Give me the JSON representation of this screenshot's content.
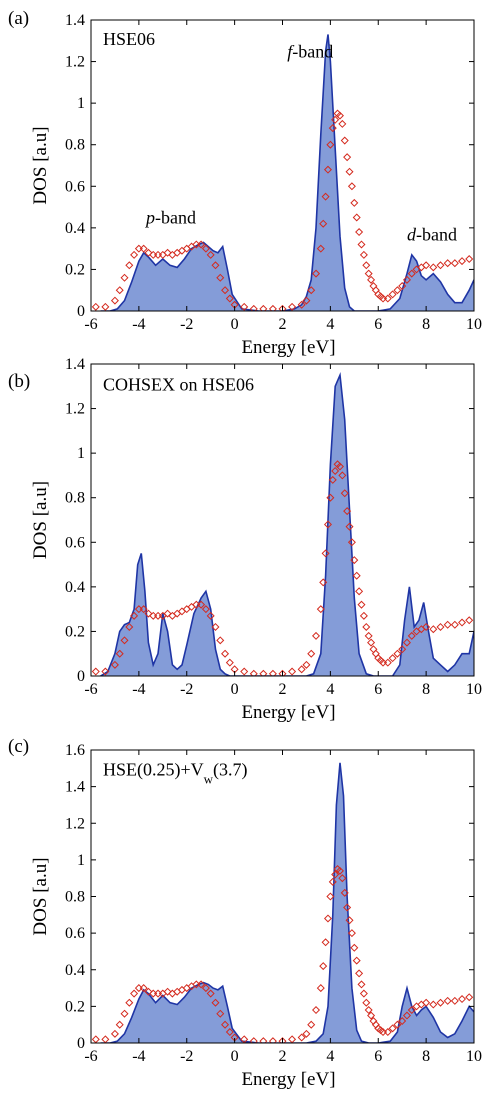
{
  "colors": {
    "dos_fill": "#6f8bd1",
    "dos_line": "#1f35a5",
    "exp_marker": "#d42a1e"
  },
  "chart_data": [
    {
      "type": "area",
      "panel_label": "(a)",
      "xlabel": "Energy [eV]",
      "ylabel": "DOS [a.u]",
      "xlim": [
        -6,
        10
      ],
      "ylim": [
        0,
        1.4
      ],
      "xticks": [
        "-6",
        "-4",
        "-2",
        "0",
        "2",
        "4",
        "6",
        "8",
        "10"
      ],
      "yticks": [
        "0",
        "0.2",
        "0.4",
        "0.6",
        "0.8",
        "1",
        "1.2",
        "1.4"
      ],
      "grid": false,
      "annotations": [
        {
          "text": "HSE06",
          "x": -5.5,
          "y": 1.28
        },
        {
          "text": "f-band",
          "x": 2.2,
          "y": 1.22
        },
        {
          "text": "p-band",
          "x": -3.7,
          "y": 0.42
        },
        {
          "text": "d-band",
          "x": 7.2,
          "y": 0.34
        }
      ],
      "series": [
        {
          "kind": "filled-line",
          "x": [
            -5.6,
            -5.2,
            -4.9,
            -4.6,
            -4.3,
            -4.0,
            -3.8,
            -3.6,
            -3.3,
            -3.0,
            -2.7,
            -2.4,
            -2.1,
            -1.8,
            -1.5,
            -1.3,
            -1.1,
            -0.9,
            -0.7,
            -0.5,
            -0.3,
            -0.1,
            0.3,
            1.0,
            2.0,
            2.5,
            2.8,
            3.0,
            3.2,
            3.4,
            3.6,
            3.8,
            3.9,
            4.0,
            4.2,
            4.4,
            4.6,
            4.8,
            5.0,
            5.3,
            5.6,
            6.0,
            6.5,
            6.9,
            7.2,
            7.4,
            7.6,
            7.8,
            8.0,
            8.3,
            8.6,
            8.9,
            9.2,
            9.5,
            9.8,
            10.0
          ],
          "y": [
            0,
            0,
            0.01,
            0.05,
            0.14,
            0.24,
            0.28,
            0.26,
            0.22,
            0.25,
            0.22,
            0.21,
            0.25,
            0.3,
            0.32,
            0.33,
            0.31,
            0.29,
            0.28,
            0.31,
            0.2,
            0.08,
            0.01,
            0,
            0,
            0.01,
            0.03,
            0.07,
            0.15,
            0.4,
            0.85,
            1.25,
            1.33,
            1.2,
            0.78,
            0.36,
            0.11,
            0.02,
            0,
            0,
            0,
            0,
            0.01,
            0.06,
            0.18,
            0.27,
            0.24,
            0.17,
            0.15,
            0.18,
            0.14,
            0.08,
            0.04,
            0.04,
            0.1,
            0.15
          ]
        },
        {
          "kind": "markers",
          "x": [
            -5.8,
            -5.4,
            -5.0,
            -4.8,
            -4.6,
            -4.4,
            -4.2,
            -4.0,
            -3.8,
            -3.6,
            -3.4,
            -3.2,
            -3.0,
            -2.8,
            -2.6,
            -2.4,
            -2.2,
            -2.0,
            -1.8,
            -1.6,
            -1.4,
            -1.2,
            -1.0,
            -0.8,
            -0.6,
            -0.4,
            -0.2,
            0.0,
            0.4,
            0.8,
            1.2,
            1.6,
            2.0,
            2.4,
            2.8,
            3.0,
            3.2,
            3.4,
            3.6,
            3.7,
            3.8,
            3.9,
            4.0,
            4.1,
            4.2,
            4.3,
            4.4,
            4.5,
            4.6,
            4.7,
            4.8,
            4.9,
            5.0,
            5.1,
            5.2,
            5.3,
            5.4,
            5.5,
            5.6,
            5.7,
            5.8,
            5.9,
            6.0,
            6.1,
            6.2,
            6.4,
            6.6,
            6.8,
            7.0,
            7.2,
            7.4,
            7.6,
            7.8,
            8.0,
            8.3,
            8.6,
            8.9,
            9.2,
            9.5,
            9.8
          ],
          "y": [
            0.02,
            0.02,
            0.05,
            0.1,
            0.16,
            0.22,
            0.27,
            0.3,
            0.3,
            0.28,
            0.27,
            0.27,
            0.27,
            0.28,
            0.27,
            0.28,
            0.29,
            0.3,
            0.31,
            0.32,
            0.32,
            0.3,
            0.27,
            0.22,
            0.16,
            0.1,
            0.06,
            0.03,
            0.02,
            0.01,
            0.01,
            0.01,
            0.01,
            0.02,
            0.03,
            0.05,
            0.1,
            0.18,
            0.3,
            0.42,
            0.55,
            0.68,
            0.8,
            0.88,
            0.92,
            0.95,
            0.94,
            0.9,
            0.82,
            0.74,
            0.67,
            0.6,
            0.52,
            0.45,
            0.38,
            0.32,
            0.27,
            0.22,
            0.18,
            0.15,
            0.12,
            0.1,
            0.08,
            0.07,
            0.06,
            0.06,
            0.08,
            0.1,
            0.12,
            0.15,
            0.18,
            0.2,
            0.21,
            0.22,
            0.21,
            0.22,
            0.23,
            0.23,
            0.24,
            0.25
          ]
        }
      ]
    },
    {
      "type": "area",
      "panel_label": "(b)",
      "xlabel": "Energy [eV]",
      "ylabel": "DOS [a.u]",
      "xlim": [
        -6,
        10
      ],
      "ylim": [
        0,
        1.4
      ],
      "xticks": [
        "-6",
        "-4",
        "-2",
        "0",
        "2",
        "4",
        "6",
        "8",
        "10"
      ],
      "yticks": [
        "0",
        "0.2",
        "0.4",
        "0.6",
        "0.8",
        "1",
        "1.2",
        "1.4"
      ],
      "grid": false,
      "annotations": [
        {
          "text": "COHSEX on HSE06",
          "x": -5.5,
          "y": 1.28
        }
      ],
      "series": [
        {
          "kind": "filled-line",
          "x": [
            -5.6,
            -5.3,
            -5.0,
            -4.8,
            -4.6,
            -4.4,
            -4.2,
            -4.05,
            -3.9,
            -3.75,
            -3.6,
            -3.4,
            -3.2,
            -3.0,
            -2.8,
            -2.6,
            -2.4,
            -2.2,
            -2.0,
            -1.7,
            -1.4,
            -1.2,
            -1.0,
            -0.8,
            -0.6,
            -0.4,
            -0.2,
            0.0,
            0.5,
            1.0,
            2.0,
            3.0,
            3.3,
            3.6,
            3.8,
            4.0,
            4.2,
            4.4,
            4.6,
            4.8,
            5.0,
            5.2,
            5.5,
            5.8,
            6.2,
            6.6,
            6.9,
            7.1,
            7.3,
            7.5,
            7.7,
            7.9,
            8.1,
            8.3,
            8.6,
            8.9,
            9.2,
            9.5,
            9.8,
            10.0
          ],
          "y": [
            0,
            0.02,
            0.1,
            0.2,
            0.23,
            0.24,
            0.3,
            0.5,
            0.55,
            0.38,
            0.15,
            0.05,
            0.1,
            0.28,
            0.2,
            0.05,
            0.03,
            0.05,
            0.14,
            0.28,
            0.35,
            0.38,
            0.3,
            0.12,
            0.03,
            0.01,
            0,
            0,
            0,
            0,
            0,
            0,
            0.01,
            0.1,
            0.45,
            0.95,
            1.3,
            1.35,
            1.15,
            0.75,
            0.35,
            0.1,
            0.01,
            0,
            0,
            0,
            0.05,
            0.25,
            0.4,
            0.22,
            0.25,
            0.33,
            0.2,
            0.08,
            0.05,
            0.02,
            0.05,
            0.1,
            0.1,
            0.2
          ]
        },
        {
          "kind": "markers",
          "x": [
            -5.8,
            -5.4,
            -5.0,
            -4.8,
            -4.6,
            -4.4,
            -4.2,
            -4.0,
            -3.8,
            -3.6,
            -3.4,
            -3.2,
            -3.0,
            -2.8,
            -2.6,
            -2.4,
            -2.2,
            -2.0,
            -1.8,
            -1.6,
            -1.4,
            -1.2,
            -1.0,
            -0.8,
            -0.6,
            -0.4,
            -0.2,
            0.0,
            0.4,
            0.8,
            1.2,
            1.6,
            2.0,
            2.4,
            2.8,
            3.0,
            3.2,
            3.4,
            3.6,
            3.7,
            3.8,
            3.9,
            4.0,
            4.1,
            4.2,
            4.3,
            4.4,
            4.5,
            4.6,
            4.7,
            4.8,
            4.9,
            5.0,
            5.1,
            5.2,
            5.3,
            5.4,
            5.5,
            5.6,
            5.7,
            5.8,
            5.9,
            6.0,
            6.1,
            6.2,
            6.4,
            6.6,
            6.8,
            7.0,
            7.2,
            7.4,
            7.6,
            7.8,
            8.0,
            8.3,
            8.6,
            8.9,
            9.2,
            9.5,
            9.8
          ],
          "y": [
            0.02,
            0.02,
            0.05,
            0.1,
            0.16,
            0.22,
            0.27,
            0.3,
            0.3,
            0.28,
            0.27,
            0.27,
            0.27,
            0.28,
            0.27,
            0.28,
            0.29,
            0.3,
            0.31,
            0.32,
            0.32,
            0.3,
            0.27,
            0.22,
            0.16,
            0.1,
            0.06,
            0.03,
            0.02,
            0.01,
            0.01,
            0.01,
            0.01,
            0.02,
            0.03,
            0.05,
            0.1,
            0.18,
            0.3,
            0.42,
            0.55,
            0.68,
            0.8,
            0.88,
            0.92,
            0.95,
            0.94,
            0.9,
            0.82,
            0.74,
            0.67,
            0.6,
            0.52,
            0.45,
            0.38,
            0.32,
            0.27,
            0.22,
            0.18,
            0.15,
            0.12,
            0.1,
            0.08,
            0.07,
            0.06,
            0.06,
            0.08,
            0.1,
            0.12,
            0.15,
            0.18,
            0.2,
            0.21,
            0.22,
            0.21,
            0.22,
            0.23,
            0.23,
            0.24,
            0.25
          ]
        }
      ]
    },
    {
      "type": "area",
      "panel_label": "(c)",
      "xlabel": "Energy [eV]",
      "ylabel": "DOS [a.u]",
      "xlim": [
        -6,
        10
      ],
      "ylim": [
        0,
        1.6
      ],
      "xticks": [
        "-6",
        "-4",
        "-2",
        "0",
        "2",
        "4",
        "6",
        "8",
        "10"
      ],
      "yticks": [
        "0",
        "0.2",
        "0.4",
        "0.6",
        "0.8",
        "1",
        "1.2",
        "1.4",
        "1.6"
      ],
      "grid": false,
      "annotations": [
        {
          "text": "HSE(0.25)+V",
          "sub": "w",
          "tail": "(3.7)",
          "x": -5.5,
          "y": 1.46
        }
      ],
      "series": [
        {
          "kind": "filled-line",
          "x": [
            -5.6,
            -5.2,
            -4.9,
            -4.6,
            -4.3,
            -4.0,
            -3.8,
            -3.6,
            -3.3,
            -3.0,
            -2.7,
            -2.4,
            -2.1,
            -1.8,
            -1.5,
            -1.3,
            -1.1,
            -0.9,
            -0.7,
            -0.5,
            -0.3,
            -0.1,
            0.3,
            1.0,
            2.0,
            3.0,
            3.4,
            3.7,
            3.9,
            4.1,
            4.25,
            4.4,
            4.55,
            4.7,
            4.9,
            5.1,
            5.3,
            5.6,
            6.0,
            6.5,
            6.8,
            7.0,
            7.2,
            7.4,
            7.6,
            7.8,
            8.0,
            8.3,
            8.6,
            8.9,
            9.2,
            9.5,
            9.8,
            10.0
          ],
          "y": [
            0,
            0,
            0.01,
            0.05,
            0.14,
            0.24,
            0.29,
            0.27,
            0.22,
            0.26,
            0.22,
            0.21,
            0.25,
            0.3,
            0.32,
            0.33,
            0.32,
            0.3,
            0.29,
            0.31,
            0.2,
            0.08,
            0.01,
            0,
            0,
            0,
            0.01,
            0.05,
            0.2,
            0.7,
            1.3,
            1.53,
            1.35,
            0.8,
            0.3,
            0.07,
            0.01,
            0,
            0,
            0.01,
            0.06,
            0.2,
            0.3,
            0.2,
            0.15,
            0.18,
            0.2,
            0.14,
            0.06,
            0.03,
            0.05,
            0.12,
            0.2,
            0.17
          ]
        },
        {
          "kind": "markers",
          "x": [
            -5.8,
            -5.4,
            -5.0,
            -4.8,
            -4.6,
            -4.4,
            -4.2,
            -4.0,
            -3.8,
            -3.6,
            -3.4,
            -3.2,
            -3.0,
            -2.8,
            -2.6,
            -2.4,
            -2.2,
            -2.0,
            -1.8,
            -1.6,
            -1.4,
            -1.2,
            -1.0,
            -0.8,
            -0.6,
            -0.4,
            -0.2,
            0.0,
            0.4,
            0.8,
            1.2,
            1.6,
            2.0,
            2.4,
            2.8,
            3.0,
            3.2,
            3.4,
            3.6,
            3.7,
            3.8,
            3.9,
            4.0,
            4.1,
            4.2,
            4.3,
            4.4,
            4.5,
            4.6,
            4.7,
            4.8,
            4.9,
            5.0,
            5.1,
            5.2,
            5.3,
            5.4,
            5.5,
            5.6,
            5.7,
            5.8,
            5.9,
            6.0,
            6.1,
            6.2,
            6.4,
            6.6,
            6.8,
            7.0,
            7.2,
            7.4,
            7.6,
            7.8,
            8.0,
            8.3,
            8.6,
            8.9,
            9.2,
            9.5,
            9.8
          ],
          "y": [
            0.02,
            0.02,
            0.05,
            0.1,
            0.16,
            0.22,
            0.27,
            0.3,
            0.3,
            0.28,
            0.27,
            0.27,
            0.27,
            0.28,
            0.27,
            0.28,
            0.29,
            0.3,
            0.31,
            0.32,
            0.32,
            0.3,
            0.27,
            0.22,
            0.16,
            0.1,
            0.06,
            0.03,
            0.02,
            0.01,
            0.01,
            0.01,
            0.01,
            0.02,
            0.03,
            0.05,
            0.1,
            0.18,
            0.3,
            0.42,
            0.55,
            0.68,
            0.8,
            0.88,
            0.92,
            0.95,
            0.94,
            0.9,
            0.82,
            0.74,
            0.67,
            0.6,
            0.52,
            0.45,
            0.38,
            0.32,
            0.27,
            0.22,
            0.18,
            0.15,
            0.12,
            0.1,
            0.08,
            0.07,
            0.06,
            0.06,
            0.08,
            0.1,
            0.12,
            0.15,
            0.18,
            0.2,
            0.21,
            0.22,
            0.21,
            0.22,
            0.23,
            0.23,
            0.24,
            0.25
          ]
        }
      ]
    }
  ]
}
